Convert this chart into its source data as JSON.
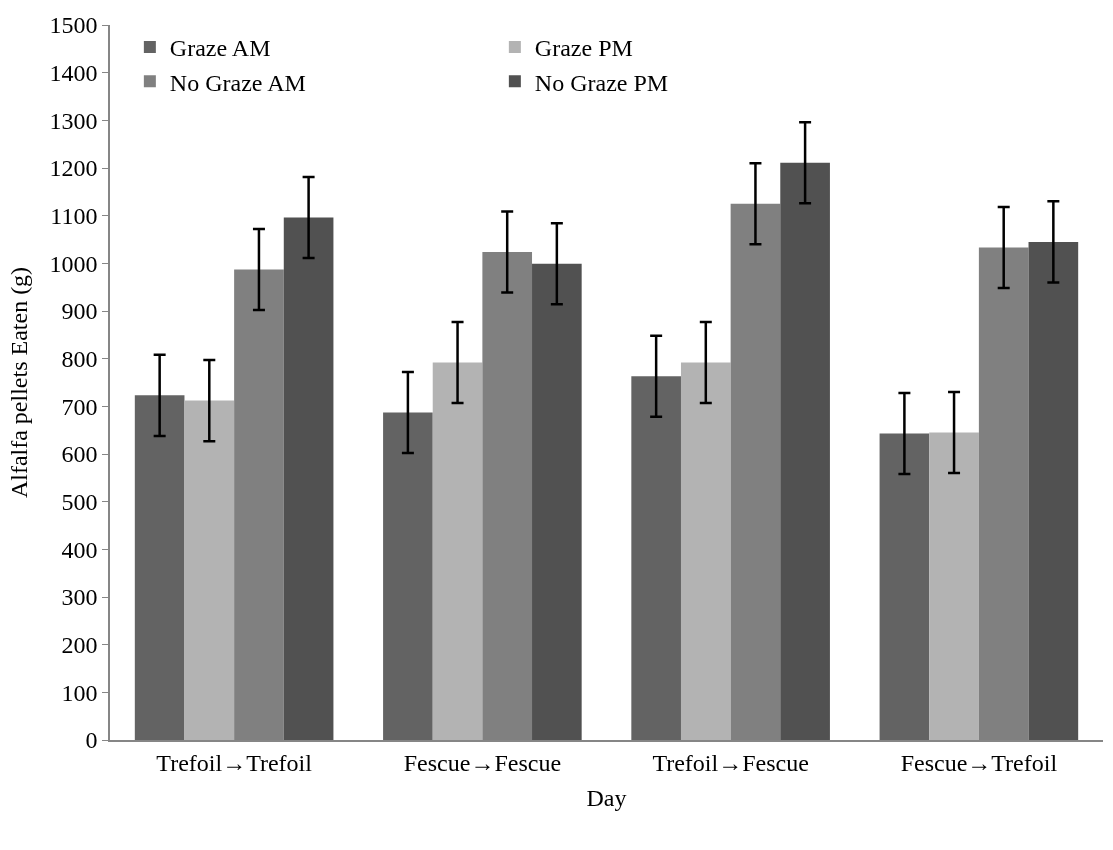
{
  "chart_data": {
    "type": "bar",
    "xlabel": "Day",
    "ylabel": "Alfalfa pellets Eaten (g)",
    "categories": [
      "Trefoil→Trefoil",
      "Fescue→Fescue",
      "Trefoil→Fescue",
      "Fescue→Trefoil"
    ],
    "series": [
      {
        "name": "Graze AM",
        "color": "#636363",
        "values": [
          723,
          687,
          763,
          643
        ],
        "errors": [
          85,
          85,
          85,
          85
        ]
      },
      {
        "name": "Graze PM",
        "color": "#b3b3b3",
        "values": [
          712,
          792,
          792,
          645
        ],
        "errors": [
          85,
          85,
          85,
          85
        ]
      },
      {
        "name": "No Graze AM",
        "color": "#808080",
        "values": [
          987,
          1024,
          1125,
          1033
        ],
        "errors": [
          85,
          85,
          85,
          85
        ]
      },
      {
        "name": "No Graze PM",
        "color": "#515151",
        "values": [
          1096,
          999,
          1211,
          1045
        ],
        "errors": [
          85,
          85,
          85,
          85
        ]
      }
    ],
    "ylim": [
      0,
      1500
    ],
    "yticks": [
      0,
      100,
      200,
      300,
      400,
      500,
      600,
      700,
      800,
      900,
      1000,
      1100,
      1200,
      1300,
      1400,
      1500
    ],
    "legend": "top left"
  }
}
